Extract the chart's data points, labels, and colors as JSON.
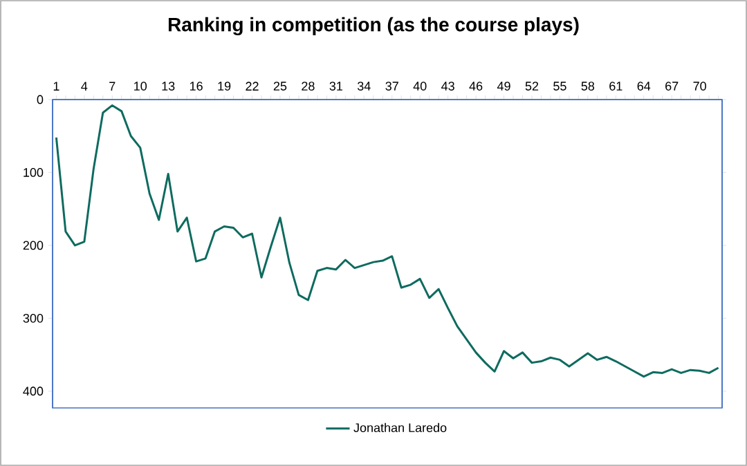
{
  "chart_data": {
    "type": "line",
    "title": "Ranking in competition (as the course plays)",
    "categories": [
      "1",
      null,
      null,
      "4",
      null,
      null,
      "7",
      null,
      null,
      "10",
      null,
      null,
      "13",
      null,
      null,
      "16",
      null,
      null,
      "19",
      null,
      null,
      "22",
      null,
      null,
      "25",
      null,
      null,
      "28",
      null,
      null,
      "31",
      null,
      null,
      "34",
      null,
      null,
      "37",
      null,
      null,
      "40",
      null,
      null,
      "43",
      null,
      null,
      "46",
      null,
      null,
      "49",
      null,
      null,
      "52",
      null,
      null,
      "55",
      null,
      null,
      "58",
      null,
      null,
      "61",
      null,
      null,
      "64",
      null,
      null,
      "67",
      null,
      null,
      "70",
      null,
      null
    ],
    "series": [
      {
        "name": "Jonathan Laredo",
        "color": "#0e6b5f",
        "values": [
          52,
          181,
          200,
          195,
          95,
          18,
          8,
          16,
          50,
          66,
          129,
          165,
          102,
          181,
          162,
          222,
          218,
          181,
          174,
          176,
          189,
          184,
          244,
          202,
          162,
          224,
          268,
          275,
          235,
          231,
          233,
          220,
          231,
          227,
          223,
          221,
          215,
          258,
          254,
          246,
          272,
          260,
          286,
          311,
          329,
          347,
          361,
          373,
          345,
          355,
          347,
          361,
          359,
          354,
          357,
          366,
          357,
          348,
          357,
          353,
          359,
          366,
          373,
          380,
          374,
          375,
          370,
          375,
          371,
          372,
          375,
          368
        ]
      }
    ],
    "ylim": [
      423,
      0
    ],
    "yticks": [
      0,
      100,
      200,
      300,
      400
    ],
    "legend": "bottom"
  }
}
